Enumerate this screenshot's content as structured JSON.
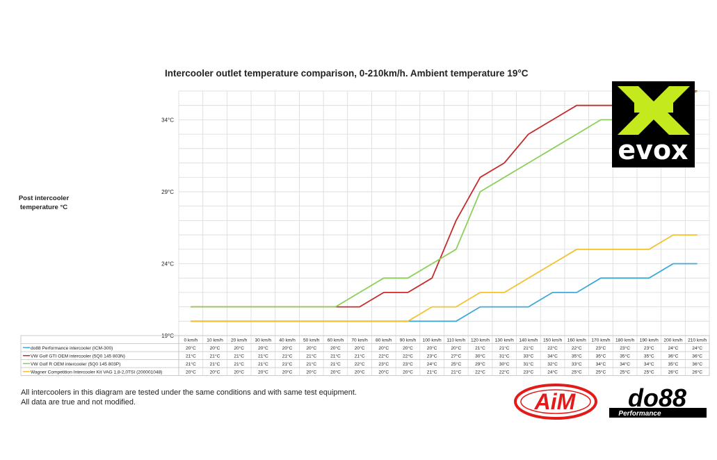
{
  "chart_data": {
    "type": "line",
    "title": "Intercooler outlet temperature comparison, 0-210km/h. Ambient temperature 19°C",
    "ylabel": "Post intercooler\ntemperature °C",
    "ytick_labels": [
      "19°C",
      "24°C",
      "29°C",
      "34°C"
    ],
    "ylim": [
      19,
      36
    ],
    "grid": true,
    "legend_placement": "table-below",
    "categories": [
      "0 km/h",
      "10 km/h",
      "20 km/h",
      "30 km/h",
      "40 km/h",
      "50 km/h",
      "60 km/h",
      "70 km/h",
      "80 km/h",
      "90 km/h",
      "100 km/h",
      "110 km/h",
      "120 km/h",
      "130 km/h",
      "140 km/h",
      "150 km/h",
      "160 km/h",
      "170 km/h",
      "180 km/h",
      "190 km/h",
      "200 km/h",
      "210 km/h"
    ],
    "series": [
      {
        "name": "do88 Performance intercooler (ICM-300)",
        "color": "#3fa9d9",
        "values": [
          20,
          20,
          20,
          20,
          20,
          20,
          20,
          20,
          20,
          20,
          20,
          20,
          21,
          21,
          21,
          22,
          22,
          23,
          23,
          23,
          24,
          24
        ]
      },
      {
        "name": "VW Golf GTI OEM intercooler (5Q0 145 803N)",
        "color": "#c62a2a",
        "values": [
          21,
          21,
          21,
          21,
          21,
          21,
          21,
          21,
          22,
          22,
          23,
          27,
          30,
          31,
          33,
          34,
          35,
          35,
          35,
          35,
          36,
          36
        ]
      },
      {
        "name": "VW Golf R OEM intercooler (5Q0 145 803P)",
        "color": "#8ccf5a",
        "values": [
          21,
          21,
          21,
          21,
          21,
          21,
          21,
          22,
          23,
          23,
          24,
          25,
          29,
          30,
          31,
          32,
          33,
          34,
          34,
          34,
          35,
          36
        ]
      },
      {
        "name": "Wagner Competition Intercooler Kit VAG 1,8-2,0TSI (200001048)",
        "color": "#f2c232",
        "values": [
          20,
          20,
          20,
          20,
          20,
          20,
          20,
          20,
          20,
          20,
          21,
          21,
          22,
          22,
          23,
          24,
          25,
          25,
          25,
          25,
          26,
          26
        ]
      }
    ],
    "unit_suffix": "°C"
  },
  "footnote": {
    "line1": "All intercoolers in this diagram are tested under the same conditions and with same test equipment.",
    "line2": "All data are true and not modified."
  },
  "logos": {
    "evox": "evox",
    "aim": "AiM",
    "do88": "do88",
    "do88_sub": "Performance"
  },
  "colors": {
    "grid": "#d9d9d9",
    "axis": "#bfbfbf",
    "evox_green": "#c4ea1d",
    "evox_bg": "#000000"
  }
}
